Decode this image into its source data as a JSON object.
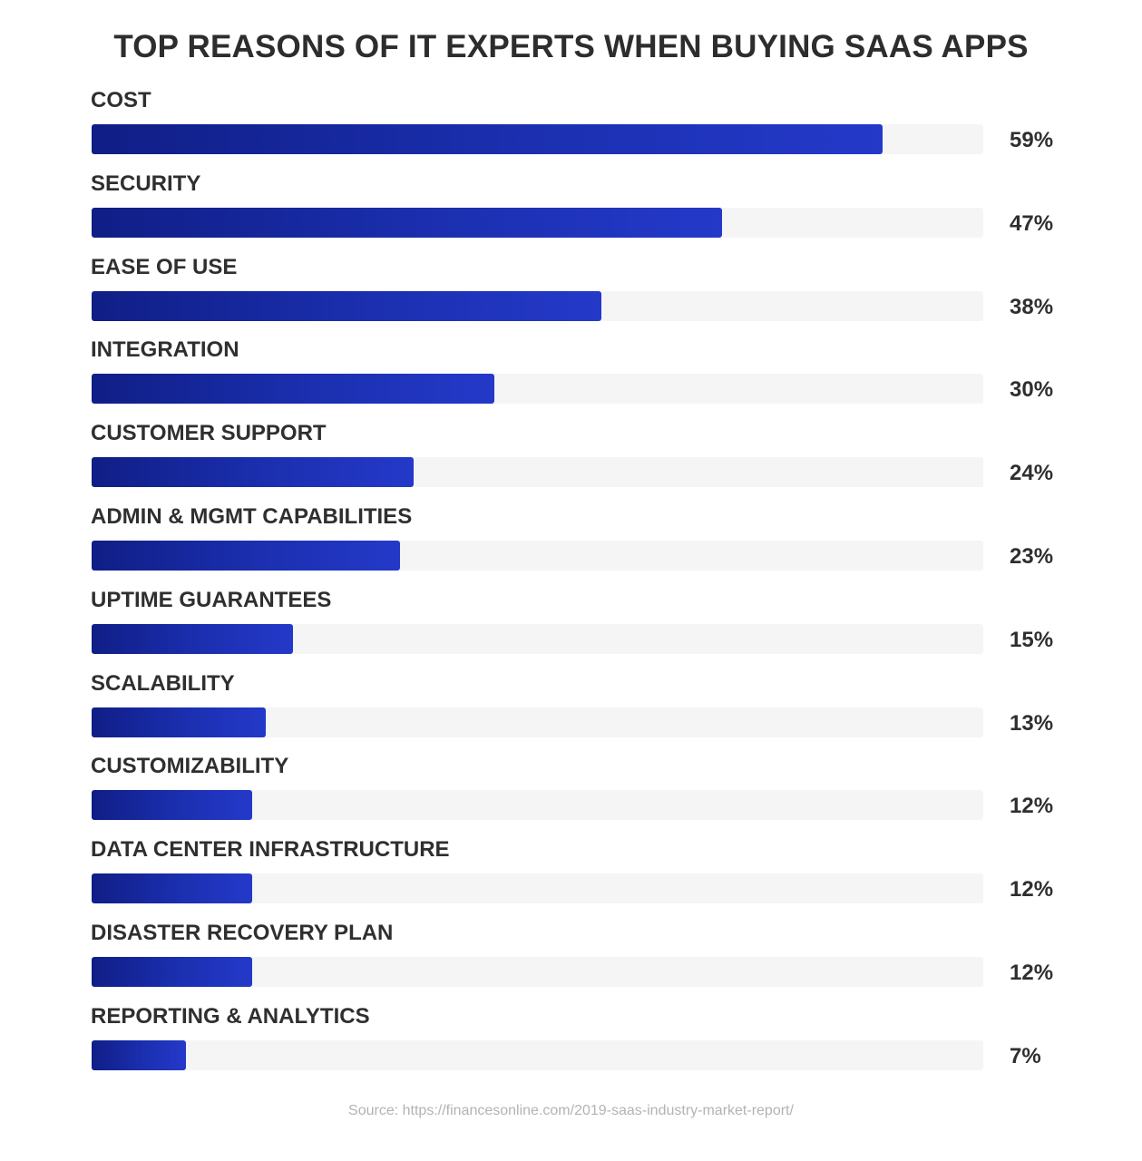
{
  "chart_data": {
    "type": "bar",
    "orientation": "horizontal",
    "title": "TOP REASONS OF IT EXPERTS WHEN BUYING SAAS APPS",
    "categories": [
      "COST",
      "SECURITY",
      "EASE OF USE",
      "INTEGRATION",
      "CUSTOMER SUPPORT",
      "ADMIN & MGMT CAPABILITIES",
      "UPTIME GUARANTEES",
      "SCALABILITY",
      "CUSTOMIZABILITY",
      "DATA CENTER INFRASTRUCTURE",
      "DISASTER RECOVERY PLAN",
      "REPORTING & ANALYTICS"
    ],
    "values": [
      59,
      47,
      38,
      30,
      24,
      23,
      15,
      13,
      12,
      12,
      12,
      7
    ],
    "value_labels": [
      "59%",
      "47%",
      "38%",
      "30%",
      "24%",
      "23%",
      "15%",
      "13%",
      "12%",
      "12%",
      "12%",
      "7%"
    ],
    "xlabel": "",
    "ylabel": "",
    "grid": false,
    "legend": "none",
    "colors": {
      "bar_start": "#101e86",
      "bar_end": "#2439c9",
      "track": "#f5f5f6"
    }
  },
  "source_text": "Source:  https://financesonline.com/2019-saas-industry-market-report/"
}
